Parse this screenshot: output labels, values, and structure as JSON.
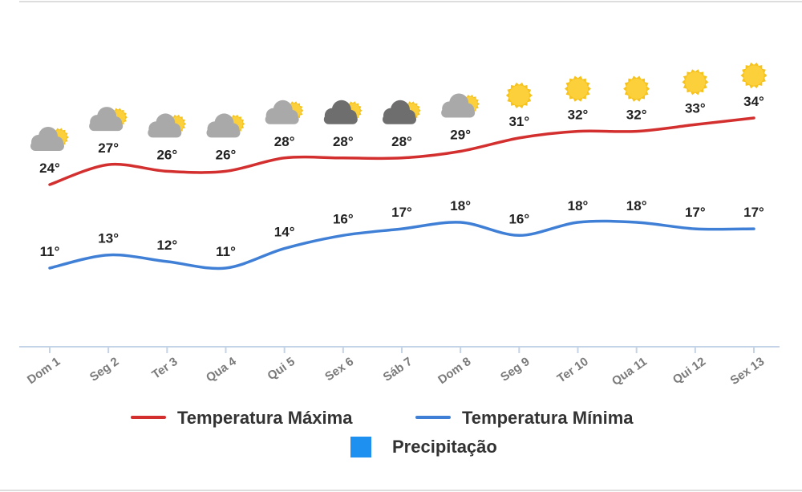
{
  "chart_data": {
    "type": "line",
    "categories": [
      "Dom 1",
      "Seg 2",
      "Ter 3",
      "Qua 4",
      "Qui 5",
      "Sex 6",
      "Sáb 7",
      "Dom 8",
      "Seg 9",
      "Ter 10",
      "Qua 11",
      "Qui 12",
      "Sex 13"
    ],
    "series": [
      {
        "name": "Temperatura Máxima",
        "color": "#d32f2f",
        "values": [
          24,
          27,
          26,
          26,
          28,
          28,
          28,
          29,
          31,
          32,
          32,
          33,
          34
        ]
      },
      {
        "name": "Temperatura Mínima",
        "color": "#3f7fd6",
        "values": [
          11,
          13,
          12,
          11,
          14,
          16,
          17,
          18,
          16,
          18,
          18,
          17,
          17
        ]
      }
    ],
    "value_suffix": "°",
    "icons": [
      "partly-cloudy-icon",
      "partly-cloudy-icon",
      "partly-cloudy-icon",
      "partly-cloudy-icon",
      "partly-cloudy-icon",
      "dark-cloudy-icon",
      "dark-cloudy-icon",
      "partly-cloudy-icon",
      "sun-icon",
      "sun-icon",
      "sun-icon",
      "sun-icon",
      "sun-icon"
    ],
    "legend": [
      {
        "name": "Temperatura Máxima",
        "color": "#d32f2f",
        "marker": "line"
      },
      {
        "name": "Temperatura Mínima",
        "color": "#3f7fd6",
        "marker": "line"
      },
      {
        "name": "Precipitação",
        "color": "#1e90f0",
        "marker": "square"
      }
    ],
    "legend_position": "bottom",
    "grid": false,
    "axis_color": "#c5d3e6"
  }
}
